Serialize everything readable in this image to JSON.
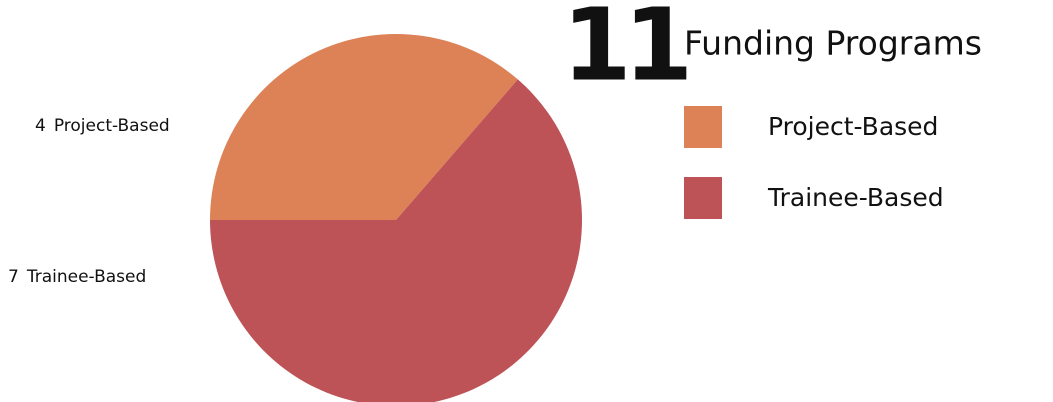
{
  "chart_data": {
    "type": "pie",
    "total": 11,
    "title": "Funding Programs",
    "categories": [
      "Project-Based",
      "Trainee-Based"
    ],
    "values": [
      4,
      7
    ],
    "colors": [
      "#dd8157",
      "#bd5356"
    ],
    "legend": "right"
  }
}
